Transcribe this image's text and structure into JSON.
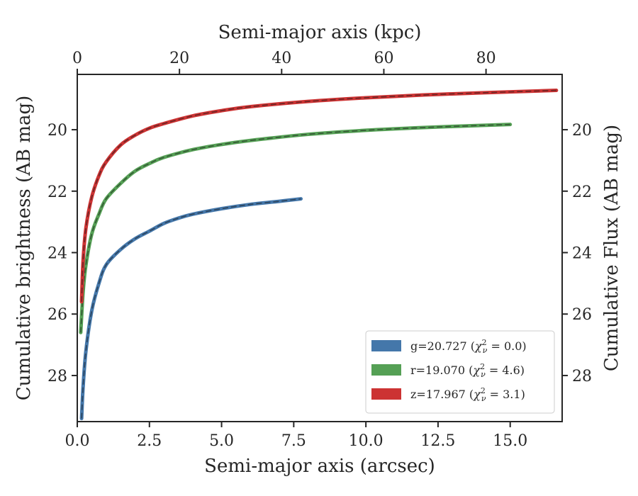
{
  "chart_data": {
    "type": "line",
    "xlabel": "Semi-major axis (arcsec)",
    "x2label": "Semi-major axis (kpc)",
    "ylabel": "Cumulative brightness (AB mag)",
    "y2label": "Cumulative Flux (AB mag)",
    "xlim": [
      0,
      16.8
    ],
    "x2lim": [
      0,
      94.9
    ],
    "ylim": [
      29.5,
      18.2
    ],
    "y_inverted": true,
    "xticks": [
      "0.0",
      "2.5",
      "5.0",
      "7.5",
      "10.0",
      "12.5",
      "15.0"
    ],
    "xtick_values": [
      0,
      2.5,
      5,
      7.5,
      10,
      12.5,
      15
    ],
    "x2ticks": [
      "0",
      "20",
      "40",
      "60",
      "80"
    ],
    "x2tick_values": [
      0,
      20,
      40,
      60,
      80
    ],
    "yticks": [
      "20",
      "22",
      "24",
      "26",
      "28"
    ],
    "ytick_values": [
      20,
      22,
      24,
      26,
      28
    ],
    "grid": false,
    "legend_position": "bottom-right",
    "series": [
      {
        "name": "g=20.727 (χ²ᵥ = 0.0)",
        "label_main": "g=20.727 (",
        "label_chi": "χ",
        "label_sup": "2",
        "label_sub": "ν",
        "label_tail": " = 0.0)",
        "color": "#4477aa",
        "x": [
          0.15,
          0.2,
          0.3,
          0.5,
          0.75,
          1.0,
          1.5,
          2.0,
          2.5,
          3.0,
          3.5,
          4.0,
          5.0,
          6.0,
          7.0,
          7.75
        ],
        "y": [
          29.4,
          28.4,
          27.2,
          25.9,
          25.0,
          24.4,
          23.9,
          23.55,
          23.3,
          23.05,
          22.88,
          22.75,
          22.57,
          22.43,
          22.33,
          22.25
        ]
      },
      {
        "name": "r=19.070 (χ²ᵥ = 4.6)",
        "label_main": "r=19.070 (",
        "label_chi": "χ",
        "label_sup": "2",
        "label_sub": "ν",
        "label_tail": " = 4.6)",
        "color": "#55a055",
        "x": [
          0.12,
          0.2,
          0.3,
          0.5,
          0.75,
          1.0,
          1.5,
          2.0,
          2.5,
          3.0,
          4.0,
          5.0,
          6.0,
          8.0,
          10.0,
          12.0,
          14.0,
          15.0
        ],
        "y": [
          26.6,
          25.3,
          24.4,
          23.4,
          22.75,
          22.25,
          21.75,
          21.35,
          21.1,
          20.9,
          20.65,
          20.48,
          20.35,
          20.15,
          20.02,
          19.93,
          19.86,
          19.83
        ]
      },
      {
        "name": "z=17.967 (χ²ᵥ = 3.1)",
        "label_main": "z=17.967 (",
        "label_chi": "χ",
        "label_sup": "2",
        "label_sub": "ν",
        "label_tail": " = 3.1)",
        "color": "#cc3333",
        "x": [
          0.15,
          0.2,
          0.3,
          0.5,
          0.75,
          1.0,
          1.5,
          2.0,
          2.5,
          3.0,
          4.0,
          5.0,
          6.0,
          8.0,
          10.0,
          12.0,
          14.0,
          16.6
        ],
        "y": [
          25.6,
          24.3,
          23.2,
          22.2,
          21.5,
          21.05,
          20.5,
          20.18,
          19.95,
          19.8,
          19.55,
          19.38,
          19.25,
          19.08,
          18.96,
          18.87,
          18.8,
          18.72
        ]
      }
    ]
  }
}
